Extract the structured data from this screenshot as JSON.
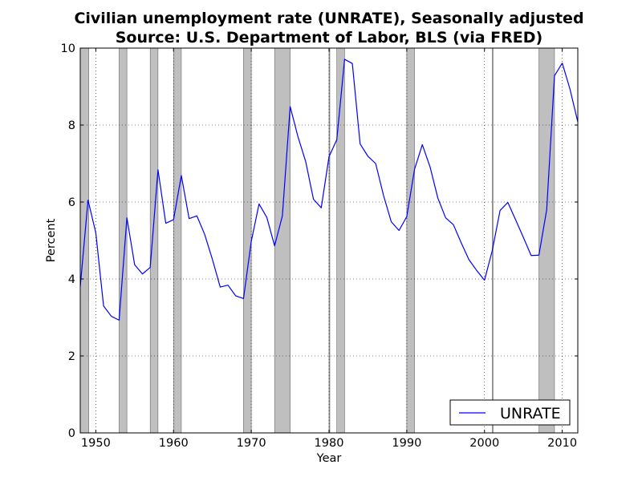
{
  "chart_data": {
    "type": "line",
    "title": "Civilian unemployment rate (UNRATE), Seasonally adjusted",
    "subtitle": "Source: U.S. Department of Labor, BLS (via FRED)",
    "xlabel": "Year",
    "ylabel": "Percent",
    "xlim": [
      1948,
      2012
    ],
    "ylim": [
      0,
      10
    ],
    "xticks": [
      1950,
      1960,
      1970,
      1980,
      1990,
      2000,
      2010
    ],
    "yticks": [
      0,
      2,
      4,
      6,
      8,
      10
    ],
    "grid": true,
    "legend": {
      "placement": "lower-right",
      "entries": [
        "UNRATE"
      ]
    },
    "recession_color": "#bfbfbf",
    "recessions": [
      [
        1948.0,
        1949.1
      ],
      [
        1953.0,
        1954.0
      ],
      [
        1957.0,
        1958.0
      ],
      [
        1960.0,
        1961.0
      ],
      [
        1969.0,
        1970.0
      ],
      [
        1973.0,
        1975.0
      ],
      [
        1980.0,
        1980.1
      ],
      [
        1981.0,
        1982.0
      ],
      [
        1990.0,
        1991.0
      ],
      [
        2001.0,
        2001.1
      ],
      [
        2007.0,
        2009.0
      ]
    ],
    "series": [
      {
        "name": "UNRATE",
        "color": "#0000ff",
        "x": [
          1948,
          1949,
          1950,
          1951,
          1952,
          1953,
          1954,
          1955,
          1956,
          1957,
          1958,
          1959,
          1960,
          1961,
          1962,
          1963,
          1964,
          1965,
          1966,
          1967,
          1968,
          1969,
          1970,
          1971,
          1972,
          1973,
          1974,
          1975,
          1976,
          1977,
          1978,
          1979,
          1980,
          1981,
          1982,
          1983,
          1984,
          1985,
          1986,
          1987,
          1988,
          1989,
          1990,
          1991,
          1992,
          1993,
          1994,
          1995,
          1996,
          1997,
          1998,
          1999,
          2000,
          2001,
          2002,
          2003,
          2004,
          2005,
          2006,
          2007,
          2008,
          2009,
          2010,
          2011,
          2012
        ],
        "values": [
          3.8,
          6.05,
          5.2,
          3.3,
          3.03,
          2.93,
          5.59,
          4.37,
          4.13,
          4.3,
          6.84,
          5.45,
          5.54,
          6.69,
          5.57,
          5.64,
          5.16,
          4.51,
          3.79,
          3.84,
          3.56,
          3.49,
          4.98,
          5.95,
          5.6,
          4.86,
          5.64,
          8.48,
          7.7,
          7.05,
          6.07,
          5.85,
          7.18,
          7.62,
          9.71,
          9.6,
          7.51,
          7.19,
          7.0,
          6.18,
          5.49,
          5.26,
          5.62,
          6.85,
          7.49,
          6.91,
          6.1,
          5.59,
          5.41,
          4.94,
          4.5,
          4.22,
          3.97,
          4.74,
          5.78,
          5.99,
          5.54,
          5.08,
          4.61,
          4.62,
          5.8,
          9.28,
          9.61,
          8.93,
          8.08
        ]
      }
    ]
  }
}
